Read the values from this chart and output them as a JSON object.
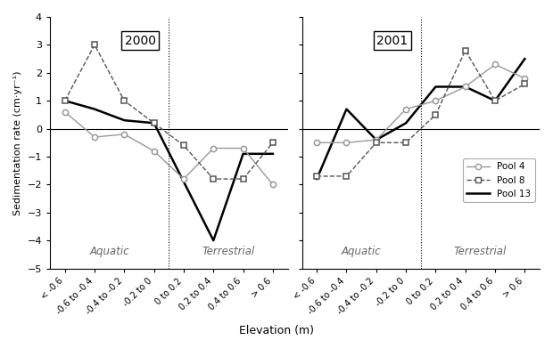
{
  "x_labels": [
    "< -0.6",
    "-0.6 to -0.4",
    "-0.4 to -0.2",
    "-0.2 to 0",
    "0 to 0.2",
    "0.2 to 0.4",
    "0.4 to 0.6",
    "> 0.6"
  ],
  "year2000": {
    "pool4": [
      0.6,
      -0.3,
      -0.2,
      -0.8,
      -1.8,
      -0.7,
      -0.7,
      -2.0
    ],
    "pool8": [
      1.0,
      3.0,
      1.0,
      0.2,
      -0.6,
      -1.8,
      -1.8,
      -0.5
    ],
    "pool13": [
      1.0,
      0.7,
      0.3,
      0.2,
      -1.9,
      -4.0,
      -0.9,
      -0.9
    ]
  },
  "year2001": {
    "pool4": [
      -0.5,
      -0.5,
      -0.4,
      0.7,
      1.0,
      1.5,
      2.3,
      1.8
    ],
    "pool8": [
      -1.7,
      -1.7,
      -0.5,
      -0.5,
      0.5,
      2.8,
      1.0,
      1.6
    ],
    "pool13": [
      -1.8,
      0.7,
      -0.4,
      0.2,
      1.5,
      1.5,
      1.0,
      2.5
    ]
  },
  "ylim": [
    -5,
    4
  ],
  "yticks": [
    -5,
    -4,
    -3,
    -2,
    -1,
    0,
    1,
    2,
    3,
    4
  ],
  "vline_x": 3.5,
  "title_2000": "2000",
  "title_2001": "2001",
  "ylabel": "Sedimentation rate (cm·yr⁻¹)",
  "xlabel": "Elevation (m)",
  "pool4_color": "#999999",
  "pool8_color": "#555555",
  "pool13_color": "#000000",
  "legend_labels": [
    "Pool 4",
    "Pool 8",
    "Pool 13"
  ],
  "background_color": "#ffffff"
}
